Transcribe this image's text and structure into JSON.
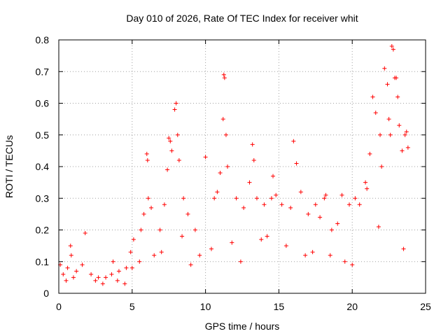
{
  "chart_data": {
    "type": "scatter",
    "title": "Day 010 of 2026, Rate Of TEC Index for receiver whit",
    "xlabel": "GPS time / hours",
    "ylabel": "ROTI / TECUs",
    "xlim": [
      0,
      25
    ],
    "ylim": [
      0,
      0.8
    ],
    "xticks": [
      "0",
      "5",
      "10",
      "15",
      "20",
      "25"
    ],
    "yticks": [
      "0",
      "0.1",
      "0.2",
      "0.3",
      "0.4",
      "0.5",
      "0.6",
      "0.7",
      "0.8"
    ],
    "grid": true,
    "marker": "+",
    "color": "#ff0000",
    "series": [
      {
        "x": [
          0.1,
          0.3,
          0.6,
          0.8,
          0.85,
          1.2,
          1.6,
          1.8,
          2.2,
          2.7,
          3.2,
          3.6,
          3.7,
          4.1,
          4.6,
          4.9,
          5.1,
          5.6,
          5.8,
          6.0,
          6.05,
          6.1,
          6.3,
          6.9,
          7.2,
          7.4,
          7.5,
          7.6,
          7.7,
          7.9,
          8.0,
          8.1,
          8.2,
          8.5,
          8.8,
          9.3,
          10.0,
          10.6,
          10.8,
          11.0,
          11.2,
          11.25,
          11.3,
          11.4,
          11.5,
          12.1,
          12.6,
          13.0,
          13.2,
          13.3,
          13.5,
          14.0,
          14.5,
          14.6,
          14.8,
          15.2,
          15.8,
          16.0,
          16.2,
          16.5,
          17.0,
          17.5,
          17.8,
          18.1,
          18.2,
          18.6,
          19.0,
          19.3,
          19.8,
          20.2,
          20.5,
          20.9,
          21.0,
          21.2,
          21.4,
          21.6,
          21.9,
          22.0,
          22.2,
          22.4,
          22.5,
          22.6,
          22.7,
          22.8,
          22.9,
          23.0,
          23.1,
          23.2,
          23.4,
          23.6,
          23.7,
          23.8,
          0.5,
          1.0,
          2.5,
          3.0,
          4.0,
          4.5,
          5.0,
          5.5,
          6.5,
          7.0,
          8.4,
          9.0,
          9.6,
          10.4,
          11.8,
          12.4,
          13.8,
          14.2,
          15.5,
          16.8,
          17.3,
          18.5,
          19.5,
          20.0,
          21.8,
          23.5
        ],
        "y": [
          0.09,
          0.06,
          0.08,
          0.15,
          0.12,
          0.07,
          0.09,
          0.19,
          0.06,
          0.05,
          0.05,
          0.06,
          0.1,
          0.07,
          0.08,
          0.13,
          0.17,
          0.2,
          0.25,
          0.44,
          0.42,
          0.3,
          0.27,
          0.2,
          0.28,
          0.39,
          0.49,
          0.48,
          0.45,
          0.58,
          0.6,
          0.5,
          0.42,
          0.3,
          0.25,
          0.2,
          0.43,
          0.3,
          0.32,
          0.38,
          0.55,
          0.69,
          0.68,
          0.5,
          0.4,
          0.3,
          0.27,
          0.35,
          0.47,
          0.42,
          0.3,
          0.28,
          0.3,
          0.37,
          0.31,
          0.28,
          0.27,
          0.48,
          0.41,
          0.32,
          0.25,
          0.28,
          0.24,
          0.3,
          0.31,
          0.2,
          0.22,
          0.31,
          0.28,
          0.3,
          0.28,
          0.35,
          0.33,
          0.44,
          0.62,
          0.57,
          0.5,
          0.4,
          0.71,
          0.66,
          0.55,
          0.5,
          0.78,
          0.77,
          0.68,
          0.68,
          0.62,
          0.53,
          0.45,
          0.5,
          0.51,
          0.46,
          0.04,
          0.05,
          0.04,
          0.03,
          0.04,
          0.03,
          0.08,
          0.1,
          0.12,
          0.13,
          0.18,
          0.09,
          0.12,
          0.14,
          0.16,
          0.1,
          0.17,
          0.18,
          0.15,
          0.12,
          0.13,
          0.12,
          0.1,
          0.09,
          0.21,
          0.14
        ]
      }
    ]
  }
}
